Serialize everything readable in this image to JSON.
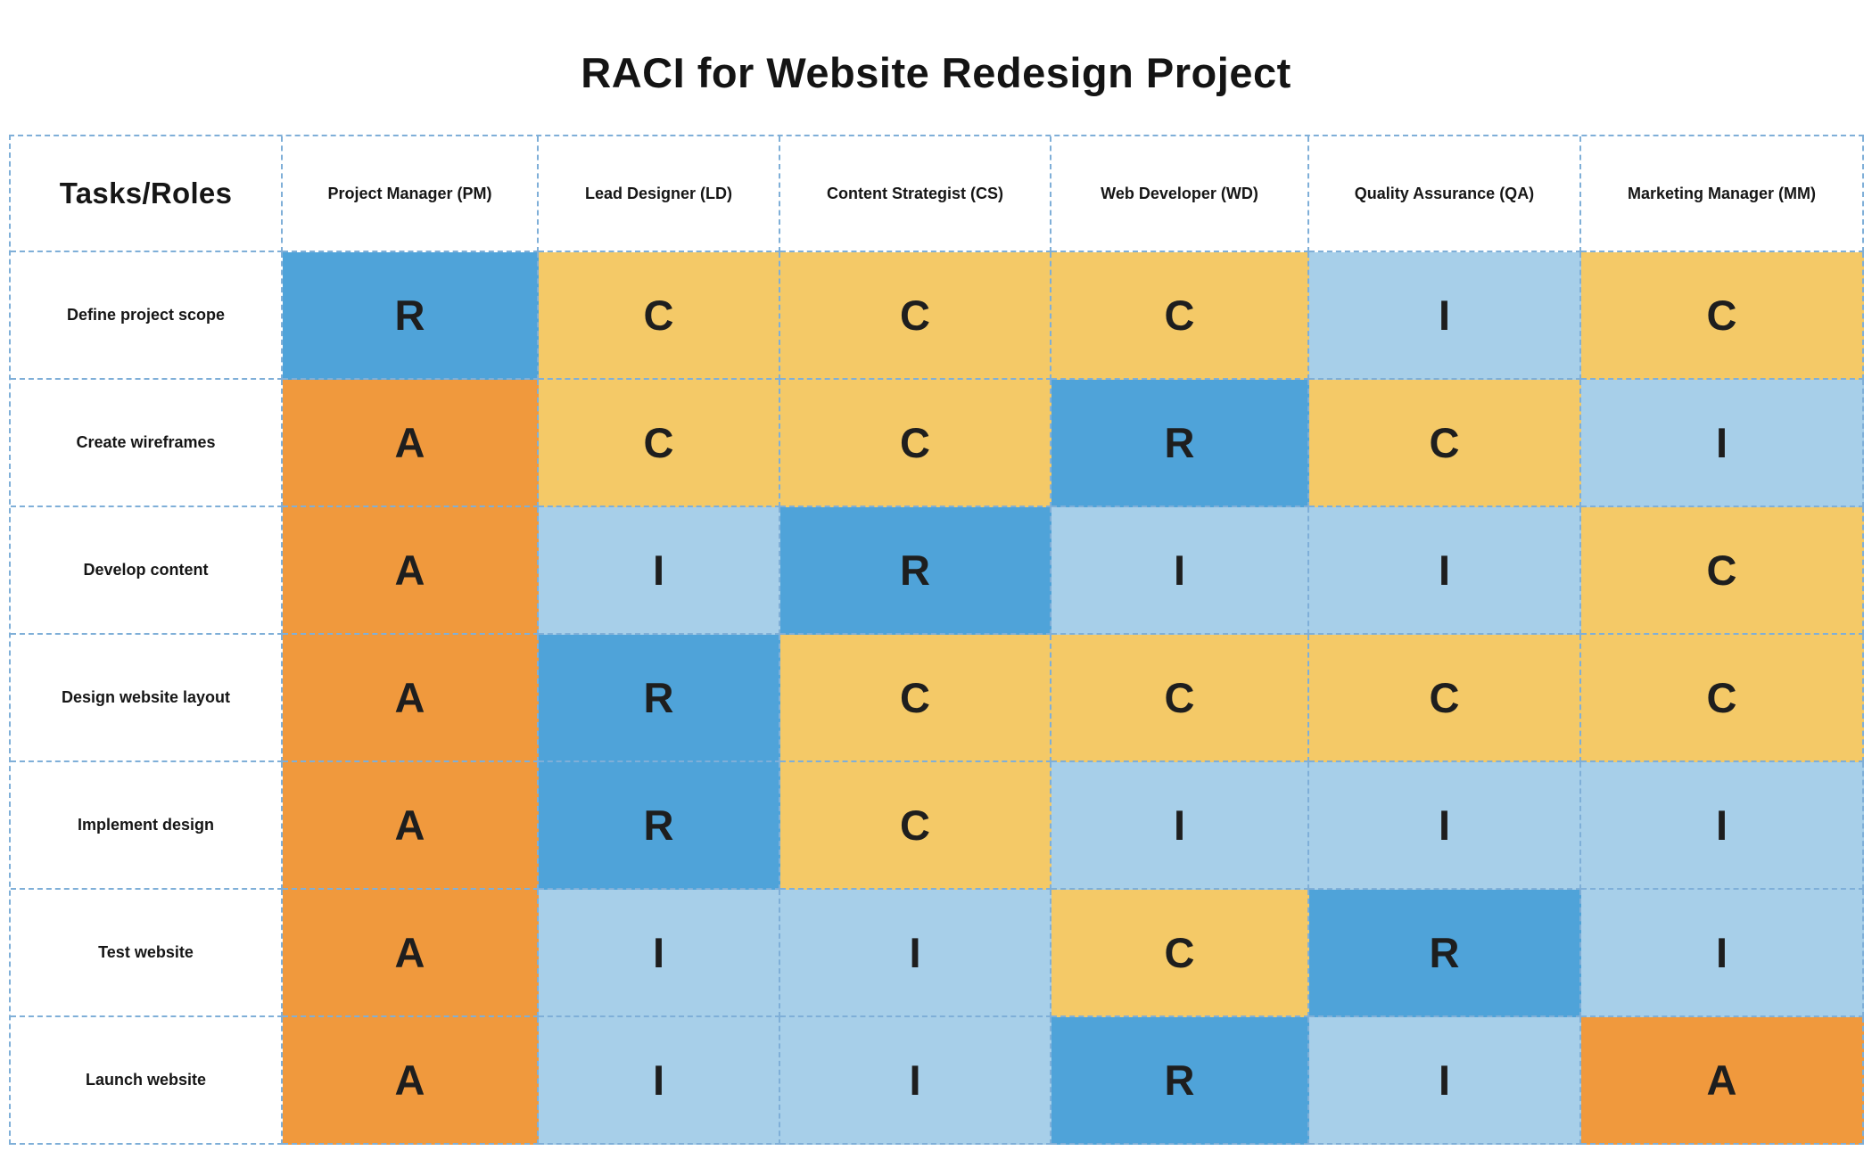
{
  "chart_data": {
    "type": "table",
    "title": "RACI for Website Redesign Project",
    "corner_header": "Tasks/Roles",
    "columns": [
      "Project Manager (PM)",
      "Lead Designer (LD)",
      "Content Strategist (CS)",
      "Web Developer (WD)",
      "Quality Assurance (QA)",
      "Marketing Manager (MM)"
    ],
    "rows": [
      {
        "task": "Define project scope",
        "values": [
          "R",
          "C",
          "C",
          "C",
          "I",
          "C"
        ]
      },
      {
        "task": "Create wireframes",
        "values": [
          "A",
          "C",
          "C",
          "R",
          "C",
          "I"
        ]
      },
      {
        "task": "Develop content",
        "values": [
          "A",
          "I",
          "R",
          "I",
          "I",
          "C"
        ]
      },
      {
        "task": "Design website layout",
        "values": [
          "A",
          "R",
          "C",
          "C",
          "C",
          "C"
        ]
      },
      {
        "task": "Implement design",
        "values": [
          "A",
          "R",
          "C",
          "I",
          "I",
          "I"
        ]
      },
      {
        "task": "Test website",
        "values": [
          "A",
          "I",
          "I",
          "C",
          "R",
          "I"
        ]
      },
      {
        "task": "Launch website",
        "values": [
          "A",
          "I",
          "I",
          "R",
          "I",
          "A"
        ]
      }
    ],
    "cell_colors": {
      "R": "#4FA3D9",
      "A": "#F0993D",
      "C": "#F4C967",
      "I": "#A7CFE9"
    },
    "grid_border_color": "#7FAFD8",
    "layout": {
      "grid_lines": "dashed",
      "header_row_background": "#ffffff",
      "task_column_background": "#ffffff"
    }
  }
}
